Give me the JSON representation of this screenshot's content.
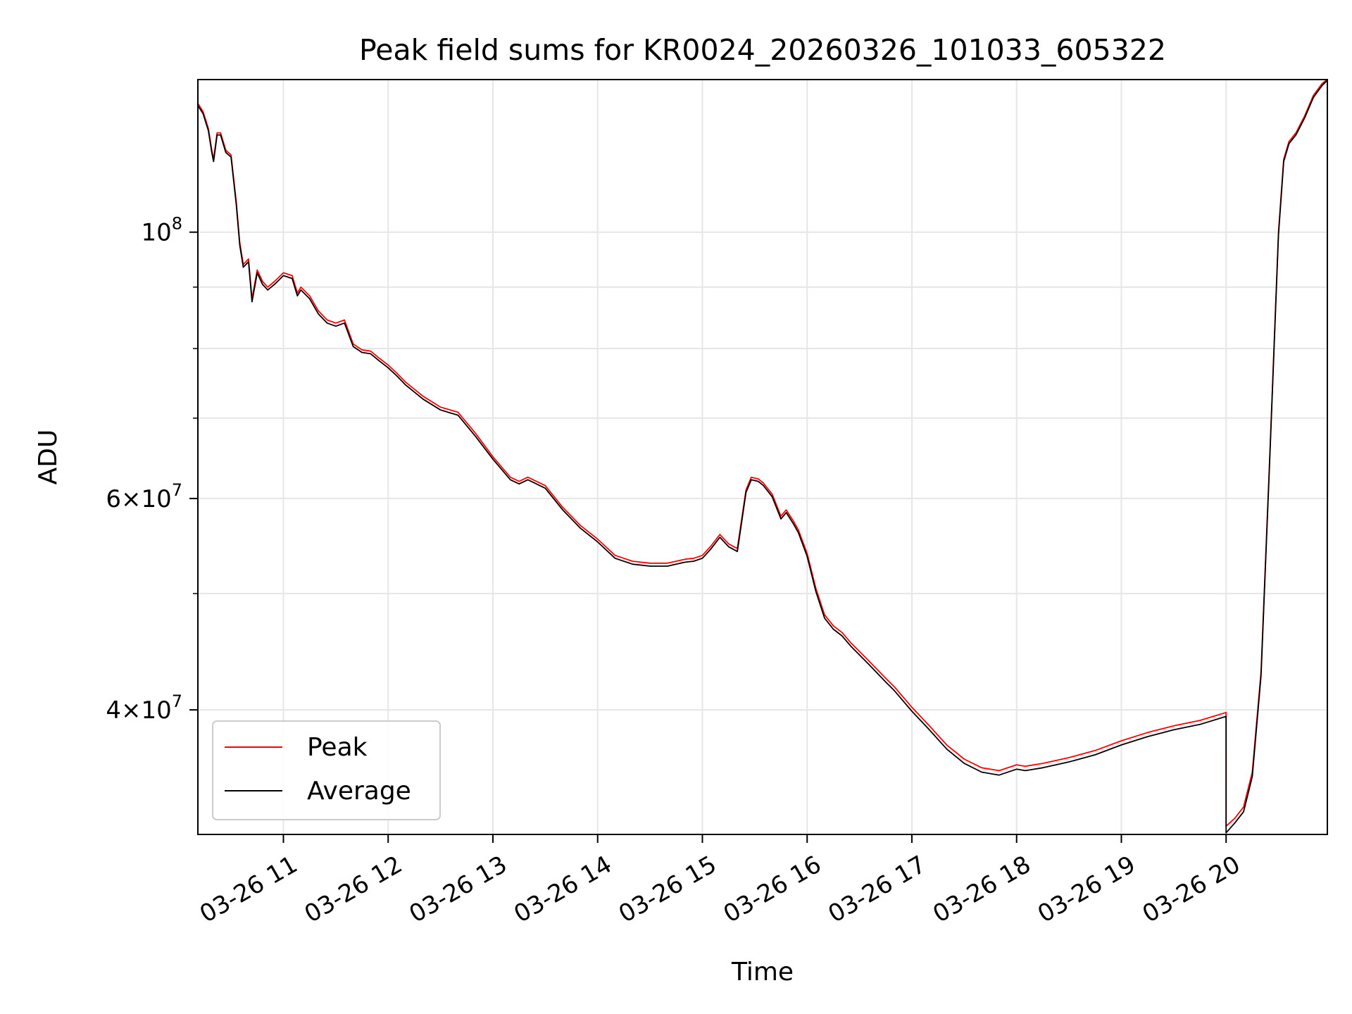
{
  "chart_data": {
    "type": "line",
    "title": "Peak field sums for KR0024_20260326_101033_605322",
    "xlabel": "Time",
    "ylabel": "ADU",
    "yscale": "log",
    "grid": true,
    "legend_placement": "lower-left",
    "xlim": [
      "2026-03-26 10:11",
      "2026-03-26 20:58"
    ],
    "ylim": [
      31500000,
      134000000
    ],
    "x_ticks": [
      {
        "t": "2026-03-26 11:00",
        "label": "03-26 11"
      },
      {
        "t": "2026-03-26 12:00",
        "label": "03-26 12"
      },
      {
        "t": "2026-03-26 13:00",
        "label": "03-26 13"
      },
      {
        "t": "2026-03-26 14:00",
        "label": "03-26 14"
      },
      {
        "t": "2026-03-26 15:00",
        "label": "03-26 15"
      },
      {
        "t": "2026-03-26 16:00",
        "label": "03-26 16"
      },
      {
        "t": "2026-03-26 17:00",
        "label": "03-26 17"
      },
      {
        "t": "2026-03-26 18:00",
        "label": "03-26 18"
      },
      {
        "t": "2026-03-26 19:00",
        "label": "03-26 19"
      },
      {
        "t": "2026-03-26 20:00",
        "label": "03-26 20"
      }
    ],
    "y_ticks": [
      {
        "v": 100000000,
        "base": "10",
        "exp": "8"
      },
      {
        "v": 60000000,
        "base": "6×10",
        "exp": "7"
      },
      {
        "v": 40000000,
        "base": "4×10",
        "exp": "7"
      }
    ],
    "y_minor_ticks": [
      50000000,
      70000000,
      80000000,
      90000000
    ],
    "series": [
      {
        "name": "Peak",
        "color": "#ff0000",
        "x": [
          "2026-03-26 10:11",
          "2026-03-26 10:14",
          "2026-03-26 10:17",
          "2026-03-26 10:19",
          "2026-03-26 10:20",
          "2026-03-26 10:22",
          "2026-03-26 10:24",
          "2026-03-26 10:27",
          "2026-03-26 10:30",
          "2026-03-26 10:33",
          "2026-03-26 10:35",
          "2026-03-26 10:37",
          "2026-03-26 10:40",
          "2026-03-26 10:42",
          "2026-03-26 10:45",
          "2026-03-26 10:48",
          "2026-03-26 10:51",
          "2026-03-26 10:55",
          "2026-03-26 11:00",
          "2026-03-26 11:05",
          "2026-03-26 11:08",
          "2026-03-26 11:10",
          "2026-03-26 11:15",
          "2026-03-26 11:20",
          "2026-03-26 11:25",
          "2026-03-26 11:30",
          "2026-03-26 11:35",
          "2026-03-26 11:40",
          "2026-03-26 11:45",
          "2026-03-26 11:50",
          "2026-03-26 11:55",
          "2026-03-26 12:00",
          "2026-03-26 12:05",
          "2026-03-26 12:10",
          "2026-03-26 12:20",
          "2026-03-26 12:30",
          "2026-03-26 12:40",
          "2026-03-26 12:50",
          "2026-03-26 13:00",
          "2026-03-26 13:10",
          "2026-03-26 13:15",
          "2026-03-26 13:20",
          "2026-03-26 13:30",
          "2026-03-26 13:40",
          "2026-03-26 13:50",
          "2026-03-26 14:00",
          "2026-03-26 14:10",
          "2026-03-26 14:20",
          "2026-03-26 14:30",
          "2026-03-26 14:40",
          "2026-03-26 14:50",
          "2026-03-26 14:55",
          "2026-03-26 15:00",
          "2026-03-26 15:05",
          "2026-03-26 15:10",
          "2026-03-26 15:15",
          "2026-03-26 15:20",
          "2026-03-26 15:25",
          "2026-03-26 15:28",
          "2026-03-26 15:32",
          "2026-03-26 15:35",
          "2026-03-26 15:40",
          "2026-03-26 15:45",
          "2026-03-26 15:48",
          "2026-03-26 15:52",
          "2026-03-26 15:55",
          "2026-03-26 16:00",
          "2026-03-26 16:05",
          "2026-03-26 16:10",
          "2026-03-26 16:15",
          "2026-03-26 16:20",
          "2026-03-26 16:25",
          "2026-03-26 16:35",
          "2026-03-26 16:45",
          "2026-03-26 16:50",
          "2026-03-26 17:00",
          "2026-03-26 17:10",
          "2026-03-26 17:20",
          "2026-03-26 17:30",
          "2026-03-26 17:40",
          "2026-03-26 17:50",
          "2026-03-26 18:00",
          "2026-03-26 18:05",
          "2026-03-26 18:15",
          "2026-03-26 18:30",
          "2026-03-26 18:45",
          "2026-03-26 19:00",
          "2026-03-26 19:15",
          "2026-03-26 19:30",
          "2026-03-26 19:45",
          "2026-03-26 20:00",
          "2026-03-26 20:00",
          "2026-03-26 20:05",
          "2026-03-26 20:10",
          "2026-03-26 20:15",
          "2026-03-26 20:20",
          "2026-03-26 20:25",
          "2026-03-26 20:30",
          "2026-03-26 20:33",
          "2026-03-26 20:36",
          "2026-03-26 20:40",
          "2026-03-26 20:45",
          "2026-03-26 20:50",
          "2026-03-26 20:55",
          "2026-03-26 20:58"
        ],
        "values": [
          128000000,
          126000000,
          122000000,
          117000000,
          115000000,
          121000000,
          121000000,
          117000000,
          116000000,
          106000000,
          98000000,
          94000000,
          95000000,
          88000000,
          93000000,
          91000000,
          90000000,
          91000000,
          92500000,
          92000000,
          89000000,
          90000000,
          88500000,
          86000000,
          84500000,
          84000000,
          84500000,
          80700000,
          79800000,
          79600000,
          78500000,
          77500000,
          76300000,
          75000000,
          73000000,
          71500000,
          70800000,
          68000000,
          65000000,
          62500000,
          62000000,
          62500000,
          61500000,
          59000000,
          57000000,
          55500000,
          53800000,
          53200000,
          53000000,
          53000000,
          53400000,
          53500000,
          53800000,
          54800000,
          56000000,
          55000000,
          54500000,
          61000000,
          62500000,
          62300000,
          61800000,
          60500000,
          58000000,
          58700000,
          57500000,
          56500000,
          54000000,
          50500000,
          48000000,
          47000000,
          46400000,
          45500000,
          44000000,
          42500000,
          41800000,
          40200000,
          38800000,
          37400000,
          36400000,
          35800000,
          35600000,
          36000000,
          35900000,
          36100000,
          36500000,
          37000000,
          37700000,
          38300000,
          38800000,
          39200000,
          39800000,
          32000000,
          32500000,
          33200000,
          35500000,
          43000000,
          65000000,
          100000000,
          115000000,
          119000000,
          121000000,
          125000000,
          130000000,
          133000000,
          134000000
        ]
      },
      {
        "name": "Average",
        "color": "#000000",
        "x": [
          "2026-03-26 10:11",
          "2026-03-26 10:14",
          "2026-03-26 10:17",
          "2026-03-26 10:19",
          "2026-03-26 10:20",
          "2026-03-26 10:22",
          "2026-03-26 10:24",
          "2026-03-26 10:27",
          "2026-03-26 10:30",
          "2026-03-26 10:33",
          "2026-03-26 10:35",
          "2026-03-26 10:37",
          "2026-03-26 10:40",
          "2026-03-26 10:42",
          "2026-03-26 10:45",
          "2026-03-26 10:48",
          "2026-03-26 10:51",
          "2026-03-26 10:55",
          "2026-03-26 11:00",
          "2026-03-26 11:05",
          "2026-03-26 11:08",
          "2026-03-26 11:10",
          "2026-03-26 11:15",
          "2026-03-26 11:20",
          "2026-03-26 11:25",
          "2026-03-26 11:30",
          "2026-03-26 11:35",
          "2026-03-26 11:40",
          "2026-03-26 11:45",
          "2026-03-26 11:50",
          "2026-03-26 11:55",
          "2026-03-26 12:00",
          "2026-03-26 12:05",
          "2026-03-26 12:10",
          "2026-03-26 12:20",
          "2026-03-26 12:30",
          "2026-03-26 12:40",
          "2026-03-26 12:50",
          "2026-03-26 13:00",
          "2026-03-26 13:10",
          "2026-03-26 13:15",
          "2026-03-26 13:20",
          "2026-03-26 13:30",
          "2026-03-26 13:40",
          "2026-03-26 13:50",
          "2026-03-26 14:00",
          "2026-03-26 14:10",
          "2026-03-26 14:20",
          "2026-03-26 14:30",
          "2026-03-26 14:40",
          "2026-03-26 14:50",
          "2026-03-26 14:55",
          "2026-03-26 15:00",
          "2026-03-26 15:05",
          "2026-03-26 15:10",
          "2026-03-26 15:15",
          "2026-03-26 15:20",
          "2026-03-26 15:25",
          "2026-03-26 15:28",
          "2026-03-26 15:32",
          "2026-03-26 15:35",
          "2026-03-26 15:40",
          "2026-03-26 15:45",
          "2026-03-26 15:48",
          "2026-03-26 15:52",
          "2026-03-26 15:55",
          "2026-03-26 16:00",
          "2026-03-26 16:05",
          "2026-03-26 16:10",
          "2026-03-26 16:15",
          "2026-03-26 16:20",
          "2026-03-26 16:25",
          "2026-03-26 16:35",
          "2026-03-26 16:45",
          "2026-03-26 16:50",
          "2026-03-26 17:00",
          "2026-03-26 17:10",
          "2026-03-26 17:20",
          "2026-03-26 17:30",
          "2026-03-26 17:40",
          "2026-03-26 17:50",
          "2026-03-26 18:00",
          "2026-03-26 18:05",
          "2026-03-26 18:15",
          "2026-03-26 18:30",
          "2026-03-26 18:45",
          "2026-03-26 19:00",
          "2026-03-26 19:15",
          "2026-03-26 19:30",
          "2026-03-26 19:45",
          "2026-03-26 20:00",
          "2026-03-26 20:00",
          "2026-03-26 20:05",
          "2026-03-26 20:10",
          "2026-03-26 20:15",
          "2026-03-26 20:20",
          "2026-03-26 20:25",
          "2026-03-26 20:30",
          "2026-03-26 20:33",
          "2026-03-26 20:36",
          "2026-03-26 20:40",
          "2026-03-26 20:45",
          "2026-03-26 20:50",
          "2026-03-26 20:55",
          "2026-03-26 20:58"
        ],
        "values": [
          127500000,
          125500000,
          121500000,
          116500000,
          114500000,
          120500000,
          120500000,
          116500000,
          115500000,
          105500000,
          97500000,
          93500000,
          94500000,
          87500000,
          92500000,
          90500000,
          89500000,
          90500000,
          92000000,
          91500000,
          88500000,
          89500000,
          88000000,
          85500000,
          84000000,
          83500000,
          84000000,
          80300000,
          79400000,
          79200000,
          78100000,
          77100000,
          75900000,
          74600000,
          72600000,
          71100000,
          70400000,
          67600000,
          64700000,
          62200000,
          61700000,
          62200000,
          61200000,
          58700000,
          56700000,
          55200000,
          53500000,
          52900000,
          52700000,
          52700000,
          53100000,
          53200000,
          53500000,
          54500000,
          55700000,
          54700000,
          54200000,
          60700000,
          62200000,
          62000000,
          61500000,
          60200000,
          57700000,
          58400000,
          57200000,
          56200000,
          53700000,
          50200000,
          47700000,
          46700000,
          46100000,
          45200000,
          43700000,
          42200000,
          41500000,
          39900000,
          38500000,
          37100000,
          36100000,
          35500000,
          35300000,
          35700000,
          35600000,
          35800000,
          36200000,
          36700000,
          37400000,
          38000000,
          38500000,
          38900000,
          39500000,
          31600000,
          32200000,
          32900000,
          35200000,
          42700000,
          64700000,
          99500000,
          114500000,
          118500000,
          120500000,
          124500000,
          129500000,
          132500000,
          133800000
        ]
      }
    ]
  }
}
